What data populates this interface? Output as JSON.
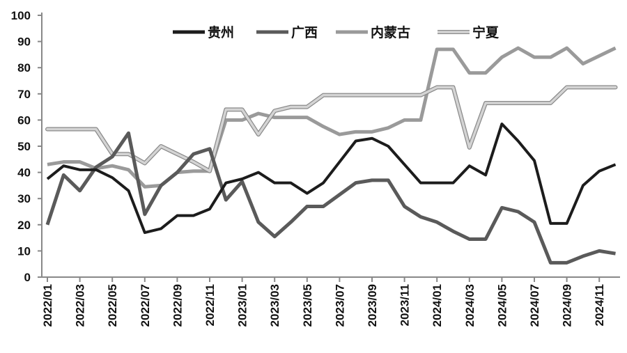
{
  "chart_data": {
    "type": "line",
    "title": "",
    "xlabel": "",
    "ylabel": "",
    "ylim": [
      0,
      100
    ],
    "yticks": [
      "0",
      "10",
      "20",
      "30",
      "40",
      "50",
      "60",
      "70",
      "80",
      "90",
      "100"
    ],
    "xtick_labels": [
      "2022/01",
      "2022/03",
      "2022/05",
      "2022/07",
      "2022/09",
      "2022/11",
      "2023/01",
      "2023/03",
      "2023/05",
      "2023/07",
      "2023/09",
      "2023/11",
      "2024/01",
      "2024/03",
      "2024/05",
      "2024/07",
      "2024/09",
      "2024/11"
    ],
    "x": [
      "2022/01",
      "2022/02",
      "2022/03",
      "2022/04",
      "2022/05",
      "2022/06",
      "2022/07",
      "2022/08",
      "2022/09",
      "2022/10",
      "2022/11",
      "2022/12",
      "2023/01",
      "2023/02",
      "2023/03",
      "2023/04",
      "2023/05",
      "2023/06",
      "2023/07",
      "2023/08",
      "2023/09",
      "2023/10",
      "2023/11",
      "2023/12",
      "2024/01",
      "2024/02",
      "2024/03",
      "2024/04",
      "2024/05",
      "2024/06",
      "2024/07",
      "2024/08",
      "2024/09",
      "2024/10",
      "2024/11",
      "2024/12"
    ],
    "legend_position": "top",
    "grid": false,
    "series": [
      {
        "name": "贵州",
        "color": "#1c1c1c",
        "values": [
          37.5,
          42.5,
          41,
          41,
          38,
          33,
          17,
          18.5,
          23.5,
          23.5,
          26,
          36,
          37.5,
          40,
          36,
          36,
          32,
          36,
          44,
          52,
          53,
          50,
          43,
          36,
          36,
          36,
          42.5,
          39,
          58.5,
          52,
          44.5,
          20.5,
          20.5,
          35,
          40.5,
          43
        ]
      },
      {
        "name": "广西",
        "color": "#5a5a5a",
        "values": [
          20,
          39,
          33,
          42,
          46,
          55,
          24,
          35,
          40,
          47,
          49,
          29.5,
          36.5,
          21,
          15.5,
          21,
          27,
          27,
          31.5,
          36,
          37,
          37,
          27,
          23,
          21,
          17.5,
          14.5,
          14.5,
          26.5,
          25,
          21,
          5.5,
          5.5,
          8,
          10,
          9
        ]
      },
      {
        "name": "内蒙古",
        "color": "#9a9a9a",
        "values": [
          43,
          44,
          44,
          41.5,
          42.5,
          41,
          34.5,
          35,
          40,
          40.5,
          40.5,
          60,
          60,
          62.5,
          61,
          61,
          61,
          57.5,
          54.5,
          55.5,
          55.5,
          57,
          60,
          60,
          87,
          87,
          78,
          78,
          84,
          87.5,
          84,
          84,
          87.5,
          81.5,
          84.5,
          87.5
        ]
      },
      {
        "name": "宁夏",
        "color": "#d4d4d4",
        "values": [
          56.5,
          56.5,
          56.5,
          56.5,
          47,
          47,
          43.5,
          50,
          47,
          44,
          40.5,
          64,
          64,
          54.5,
          63.5,
          65,
          65,
          69.5,
          69.5,
          69.5,
          69.5,
          69.5,
          69.5,
          69.5,
          72.5,
          72.5,
          49.5,
          66.5,
          66.5,
          66.5,
          66.5,
          66.5,
          72.5,
          72.5,
          72.5,
          72.5
        ]
      }
    ]
  }
}
